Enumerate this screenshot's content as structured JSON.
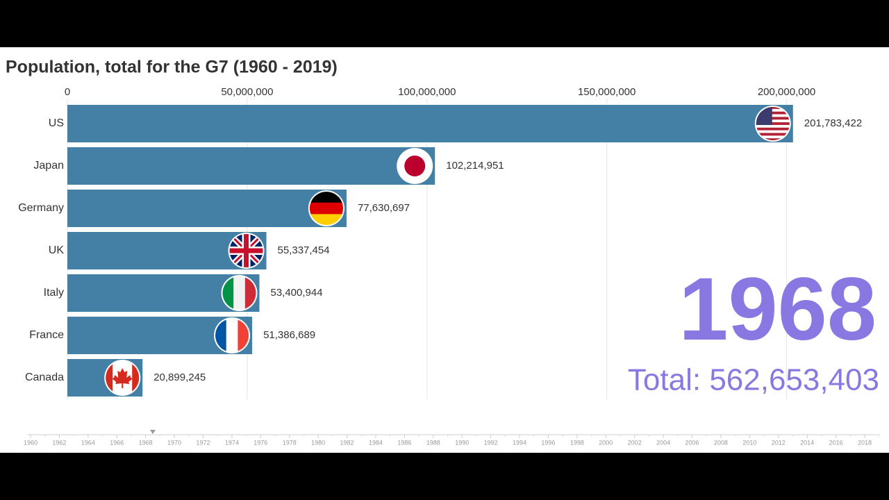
{
  "chart_data": {
    "type": "bar",
    "orientation": "horizontal",
    "title": "Population, total for the G7 (1960 - 2019)",
    "categories": [
      "US",
      "Japan",
      "Germany",
      "UK",
      "Italy",
      "France",
      "Canada"
    ],
    "values": [
      201783422,
      102214951,
      77630697,
      55337454,
      53400944,
      51386689,
      20899245
    ],
    "value_labels": [
      "201,783,422",
      "102,214,951",
      "77,630,697",
      "55,337,454",
      "53,400,944",
      "51,386,689",
      "20,899,245"
    ],
    "color": "#4480a6",
    "xlim": [
      0,
      225000000
    ],
    "xticks": [
      0,
      {
        "value": 50000000,
        "label": "50,000,000"
      },
      {
        "value": 100000000,
        "label": "100,000,000"
      },
      {
        "value": 150000000,
        "label": "150,000,000"
      },
      {
        "value": 200000000,
        "label": "200,000,000"
      }
    ],
    "grid": true,
    "year": "1968",
    "total": "Total: 562,653,403",
    "accent_color": "#8a78e2",
    "timeline": [
      "1960",
      "1962",
      "1964",
      "1966",
      "1968",
      "1970",
      "1972",
      "1974",
      "1976",
      "1978",
      "1980",
      "1982",
      "1984",
      "1986",
      "1988",
      "1990",
      "1992",
      "1994",
      "1996",
      "1998",
      "2000",
      "2002",
      "2004",
      "2006",
      "2008",
      "2010",
      "2012",
      "2014",
      "2016",
      "2018"
    ]
  }
}
